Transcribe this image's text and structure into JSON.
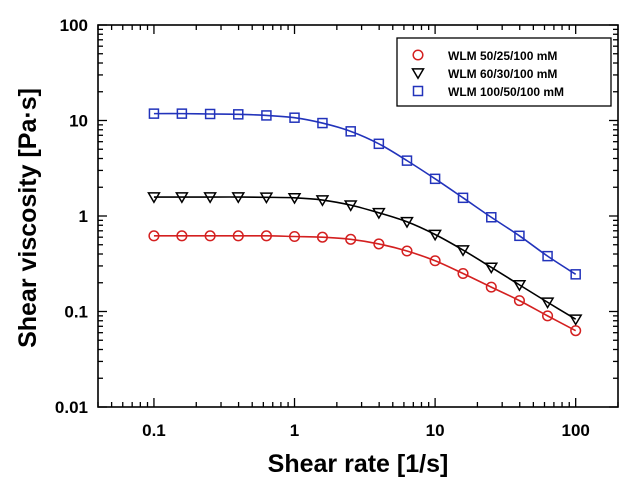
{
  "chart_data": {
    "type": "line",
    "title": "",
    "xlabel": "Shear rate [1/s]",
    "ylabel": "Shear viscosity [Pa·s]",
    "xscale": "log",
    "yscale": "log",
    "xlim": [
      0.04,
      200
    ],
    "ylim": [
      0.01,
      100
    ],
    "x_ticks": [
      0.1,
      1,
      10,
      100
    ],
    "x_tick_labels": [
      "0.1",
      "1",
      "10",
      "100"
    ],
    "y_ticks": [
      0.01,
      0.1,
      1,
      10,
      100
    ],
    "y_tick_labels": [
      "0.01",
      "0.1",
      "1",
      "10",
      "100"
    ],
    "grid": false,
    "legend_position": "top-right",
    "x": [
      0.1,
      0.158,
      0.251,
      0.398,
      0.631,
      1,
      1.58,
      2.51,
      3.98,
      6.31,
      10,
      15.8,
      25.1,
      39.8,
      63.1,
      100
    ],
    "series": [
      {
        "name": "WLM 50/25/100 mM",
        "marker": "circle",
        "color": "#d42020",
        "values": [
          0.62,
          0.62,
          0.62,
          0.62,
          0.62,
          0.61,
          0.6,
          0.57,
          0.51,
          0.43,
          0.34,
          0.25,
          0.18,
          0.13,
          0.09,
          0.063
        ]
      },
      {
        "name": "WLM 60/30/100 mM",
        "marker": "triangle-down",
        "color": "#000000",
        "values": [
          1.58,
          1.58,
          1.58,
          1.58,
          1.57,
          1.55,
          1.47,
          1.3,
          1.08,
          0.87,
          0.64,
          0.44,
          0.29,
          0.19,
          0.125,
          0.083
        ]
      },
      {
        "name": "WLM 100/50/100 mM",
        "marker": "square",
        "color": "#2233bb",
        "values": [
          11.8,
          11.8,
          11.7,
          11.6,
          11.3,
          10.7,
          9.4,
          7.7,
          5.7,
          3.8,
          2.45,
          1.55,
          0.97,
          0.62,
          0.38,
          0.245
        ]
      }
    ]
  }
}
